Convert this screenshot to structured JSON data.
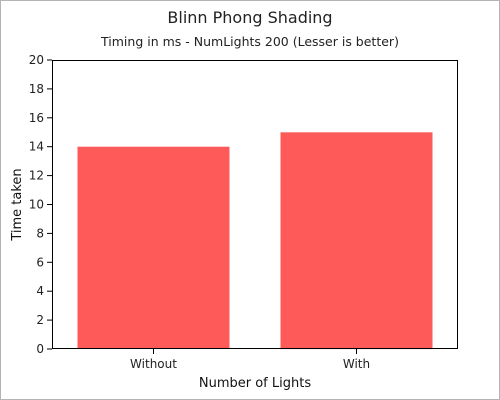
{
  "chart_data": {
    "type": "bar",
    "title": "Blinn Phong Shading",
    "subtitle": "Timing in ms - NumLights 200 (Lesser is better)",
    "xlabel": "Number of Lights",
    "ylabel": "Time taken",
    "categories": [
      "Without",
      "With"
    ],
    "values": [
      14,
      15
    ],
    "ylim": [
      0,
      20
    ],
    "yticks": [
      0,
      2,
      4,
      6,
      8,
      10,
      12,
      14,
      16,
      18,
      20
    ],
    "grid": false,
    "legend": "none",
    "bar_color": "#ff5a5a",
    "axis_color": "#000000"
  }
}
